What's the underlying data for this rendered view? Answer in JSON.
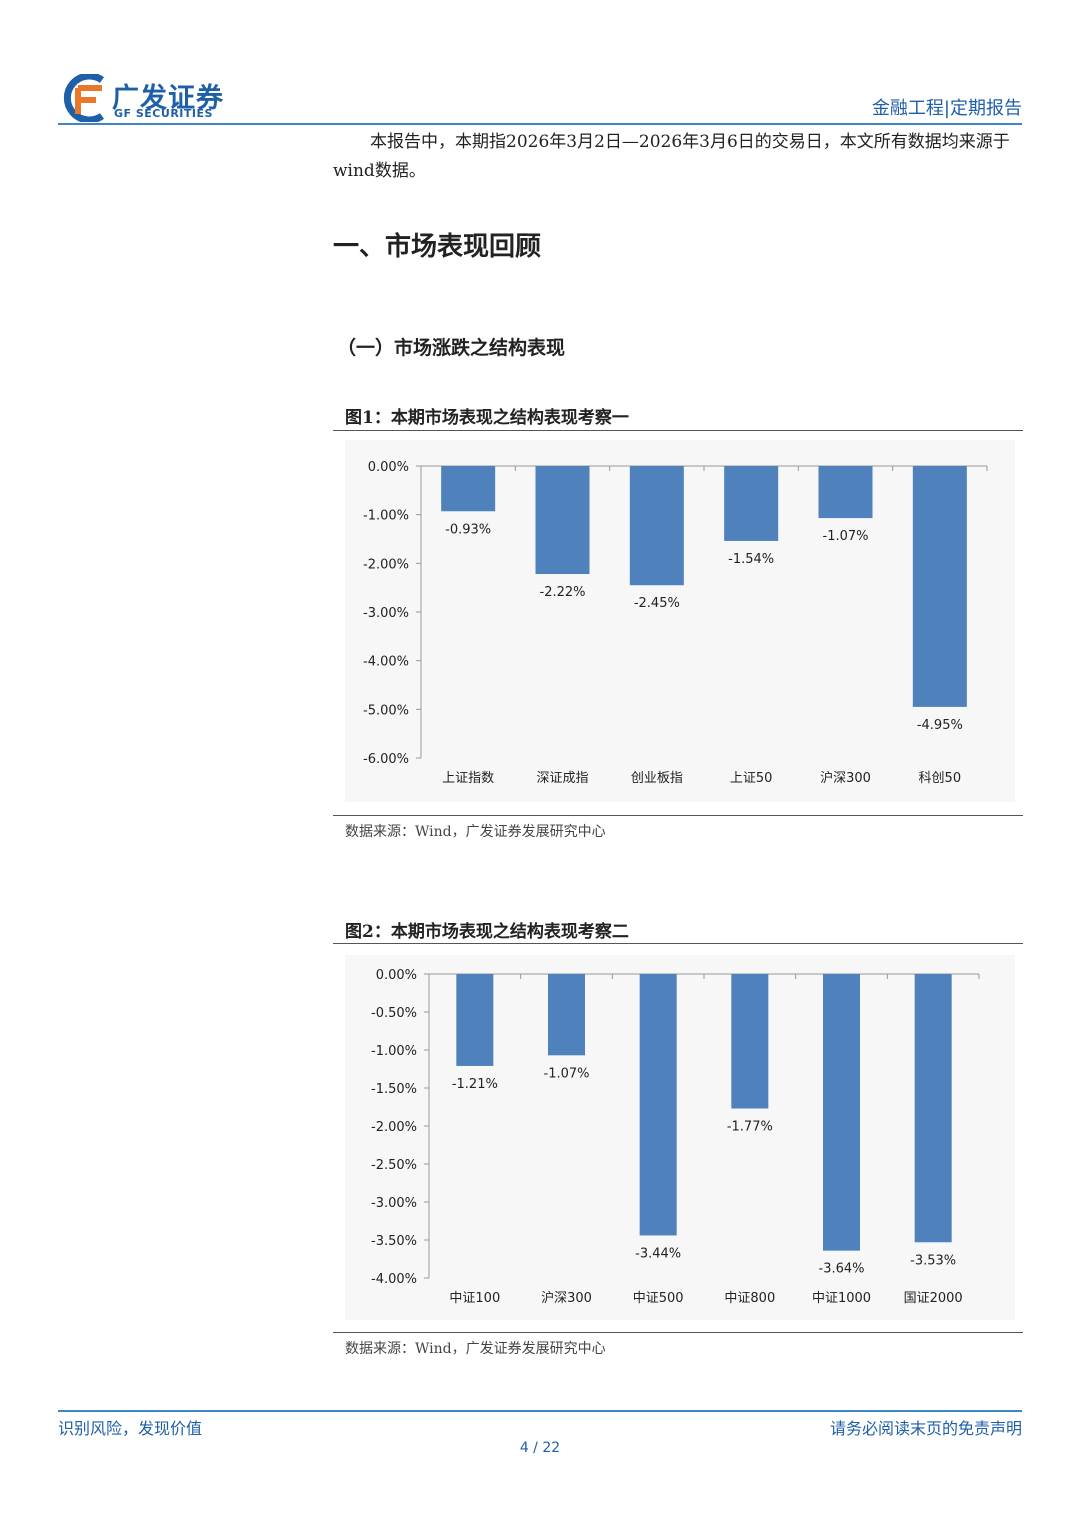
{
  "header": {
    "logo_cn": "广发证券",
    "logo_en": "GF SECURITIES",
    "right_text": "金融工程|定期报告"
  },
  "intro": "本报告中，本期指2026年3月2日—2026年3月6日的交易日，本文所有数据均来源于wind数据。",
  "section_title": "一、市场表现回顾",
  "subsection_title": "（一）市场涨跌之结构表现",
  "colors": {
    "bar": "#4f81bd",
    "brand": "#1f5fa8",
    "rule": "#3f86c6"
  },
  "chart_data": [
    {
      "type": "bar",
      "title": "图1：本期市场表现之结构表现考察一",
      "categories": [
        "上证指数",
        "深证成指",
        "创业板指",
        "上证50",
        "沪深300",
        "科创50"
      ],
      "values": [
        -0.93,
        -2.22,
        -2.45,
        -1.54,
        -1.07,
        -4.95
      ],
      "data_labels": [
        "-0.93%",
        "-2.22%",
        "-2.45%",
        "-1.54%",
        "-1.07%",
        "-4.95%"
      ],
      "ylim": [
        -6,
        0
      ],
      "yticks": [
        0,
        -1,
        -2,
        -3,
        -4,
        -5,
        -6
      ],
      "ytick_labels": [
        "0.00%",
        "-1.00%",
        "-2.00%",
        "-3.00%",
        "-4.00%",
        "-5.00%",
        "-6.00%"
      ],
      "source": "数据来源：Wind，广发证券发展研究中心",
      "grid": false,
      "legend": "none"
    },
    {
      "type": "bar",
      "title": "图2：本期市场表现之结构表现考察二",
      "categories": [
        "中证100",
        "沪深300",
        "中证500",
        "中证800",
        "中证1000",
        "国证2000"
      ],
      "values": [
        -1.21,
        -1.07,
        -3.44,
        -1.77,
        -3.64,
        -3.53
      ],
      "data_labels": [
        "-1.21%",
        "-1.07%",
        "-3.44%",
        "-1.77%",
        "-3.64%",
        "-3.53%"
      ],
      "ylim": [
        -4,
        0
      ],
      "yticks": [
        0,
        -0.5,
        -1,
        -1.5,
        -2,
        -2.5,
        -3,
        -3.5,
        -4
      ],
      "ytick_labels": [
        "0.00%",
        "-0.50%",
        "-1.00%",
        "-1.50%",
        "-2.00%",
        "-2.50%",
        "-3.00%",
        "-3.50%",
        "-4.00%"
      ],
      "source": "数据来源：Wind，广发证券发展研究中心",
      "grid": false,
      "legend": "none"
    }
  ],
  "footer": {
    "left": "识别风险，发现价值",
    "right": "请务必阅读末页的免责声明",
    "page": "4 / 22"
  }
}
